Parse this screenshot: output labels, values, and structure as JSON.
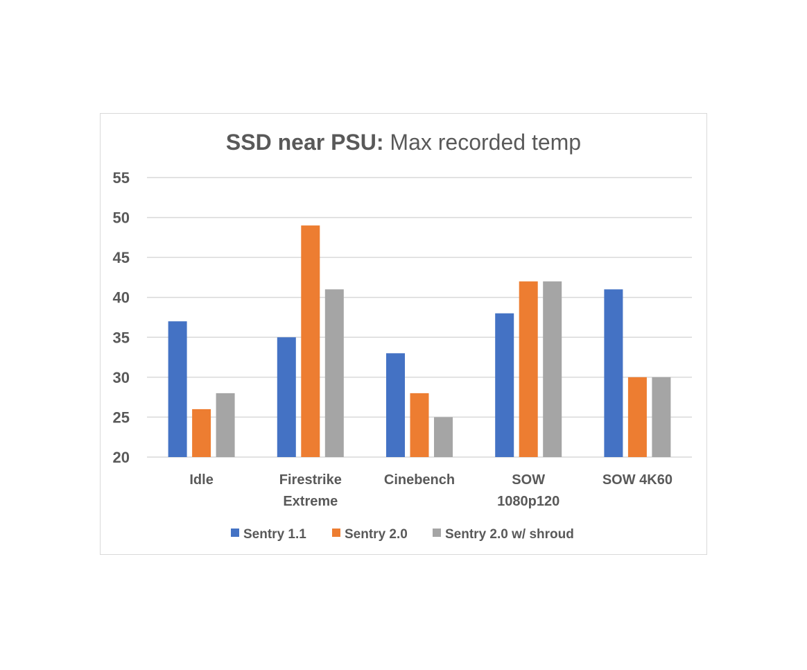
{
  "chart_data": {
    "type": "bar",
    "title_bold": "SSD near PSU:",
    "title_rest": " Max recorded temp",
    "categories": [
      [
        "Idle"
      ],
      [
        "Firestrike",
        "Extreme"
      ],
      [
        "Cinebench"
      ],
      [
        "SOW",
        "1080p120"
      ],
      [
        "SOW 4K60"
      ]
    ],
    "series": [
      {
        "name": "Sentry 1.1",
        "color": "#4472c4",
        "values": [
          37,
          35,
          33,
          38,
          41
        ]
      },
      {
        "name": "Sentry 2.0",
        "color": "#ed7d31",
        "values": [
          26,
          49,
          28,
          42,
          30
        ]
      },
      {
        "name": "Sentry 2.0 w/ shroud",
        "color": "#a5a5a5",
        "values": [
          28,
          41,
          25,
          42,
          30
        ]
      }
    ],
    "ylim": [
      20,
      55
    ],
    "yticks": [
      20,
      25,
      30,
      35,
      40,
      45,
      50,
      55
    ],
    "grid": true,
    "legend_position": "bottom"
  }
}
